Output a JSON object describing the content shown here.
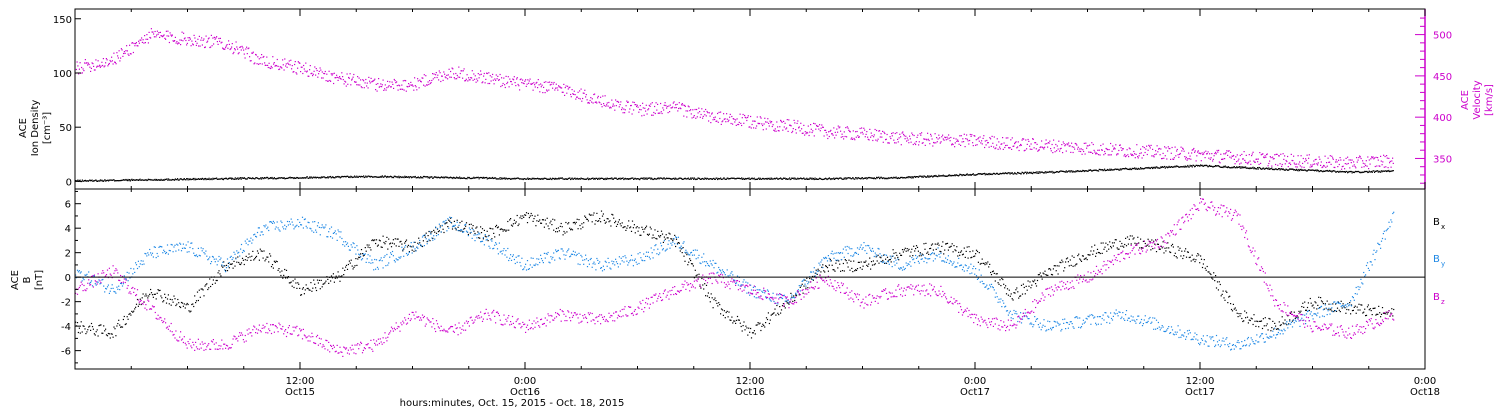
{
  "chart_data": [
    {
      "type": "scatter",
      "panel": "top",
      "x_unit": "hours since Oct 15, 2015 00:00",
      "xlim": [
        0,
        72
      ],
      "left_axis": {
        "label_lines": [
          "ACE",
          "Ion Density",
          "[cm⁻³]"
        ],
        "ticks": [
          0,
          50,
          100,
          150
        ],
        "tick_labels": [
          "0",
          "50",
          "100",
          "150"
        ],
        "ylim": [
          -7,
          159
        ]
      },
      "right_axis": {
        "label_lines": [
          "ACE",
          "Velocity",
          "[km/s]"
        ],
        "ticks": [
          350,
          400,
          450,
          500
        ],
        "tick_labels": [
          "350",
          "400",
          "450",
          "500"
        ],
        "ylim": [
          313,
          531
        ],
        "color": "#cc00cc"
      },
      "series": [
        {
          "name": "",
          "axis": "left",
          "color": "#000000",
          "x": [
            0,
            4,
            8,
            12,
            16,
            20,
            24,
            28,
            32,
            36,
            40,
            44,
            48,
            52,
            56,
            60,
            64,
            68,
            70.3
          ],
          "y": [
            1,
            2,
            3,
            4,
            5,
            4,
            3,
            3,
            3,
            3,
            3,
            4,
            7,
            9,
            12,
            15,
            12,
            9,
            10
          ]
        },
        {
          "name": "",
          "axis": "right",
          "color": "#cc00cc",
          "x": [
            0,
            2,
            4,
            6,
            8,
            10,
            12,
            14,
            16,
            18,
            20,
            22,
            24,
            26,
            28,
            30,
            32,
            34,
            36,
            38,
            40,
            42,
            44,
            46,
            48,
            50,
            52,
            54,
            56,
            58,
            60,
            62,
            64,
            66,
            68,
            70.3
          ],
          "y": [
            460,
            470,
            500,
            495,
            490,
            468,
            460,
            448,
            440,
            440,
            455,
            448,
            440,
            435,
            420,
            410,
            412,
            400,
            395,
            390,
            383,
            380,
            375,
            373,
            372,
            368,
            366,
            363,
            360,
            358,
            355,
            352,
            349,
            347,
            345,
            348
          ]
        }
      ]
    },
    {
      "type": "scatter",
      "panel": "bottom",
      "x_unit": "hours since Oct 15, 2015 00:00",
      "xlim": [
        0,
        72
      ],
      "title": "",
      "xlabel": "hours:minutes, Oct. 15, 2015 - Oct. 18, 2015",
      "x_ticks": [
        12,
        24,
        36,
        48,
        60,
        72
      ],
      "x_tick_labels": [
        [
          "12:00",
          "Oct15"
        ],
        [
          "0:00",
          "Oct16"
        ],
        [
          "12:00",
          "Oct16"
        ],
        [
          "0:00",
          "Oct17"
        ],
        [
          "12:00",
          "Oct17"
        ],
        [
          "0:00",
          "Oct18"
        ]
      ],
      "left_axis": {
        "label_lines": [
          "ACE",
          "B",
          "[nT]"
        ],
        "ticks": [
          -6,
          -4,
          -2,
          0,
          2,
          4,
          6
        ],
        "tick_labels": [
          "-6",
          "-4",
          "-2",
          "0",
          "2",
          "4",
          "6"
        ],
        "ylim": [
          -7.5,
          7.2
        ]
      },
      "zero_line": true,
      "legend_position": "right",
      "series": [
        {
          "name": "Bx",
          "label_main": "B",
          "label_sub": "x",
          "color": "#000000",
          "x": [
            0,
            2,
            4,
            6,
            8,
            10,
            12,
            14,
            16,
            18,
            20,
            22,
            24,
            26,
            28,
            30,
            32,
            34,
            36,
            38,
            40,
            42,
            44,
            46,
            48,
            50,
            52,
            54,
            56,
            58,
            60,
            62,
            64,
            66,
            68,
            70.3
          ],
          "y": [
            -4,
            -4.5,
            -1,
            -2.5,
            1,
            2,
            -1,
            0,
            3,
            2.5,
            4.5,
            3.5,
            5,
            4,
            5,
            4,
            3,
            -2,
            -4.5,
            -2,
            1,
            1,
            2,
            2.5,
            2,
            -1.5,
            0.5,
            2,
            3,
            2.5,
            1.5,
            -3,
            -4,
            -2,
            -2.5,
            -3
          ]
        },
        {
          "name": "By",
          "label_main": "B",
          "label_sub": "y",
          "color": "#1e88e5",
          "x": [
            0,
            2,
            4,
            6,
            8,
            10,
            12,
            14,
            16,
            18,
            20,
            22,
            24,
            26,
            28,
            30,
            32,
            34,
            36,
            38,
            40,
            42,
            44,
            46,
            48,
            50,
            52,
            54,
            56,
            58,
            60,
            62,
            64,
            66,
            68,
            70.3
          ],
          "y": [
            0.5,
            -1,
            2,
            2.5,
            1,
            4,
            4.5,
            3.5,
            1,
            2.5,
            4.5,
            3,
            1,
            2,
            1,
            1.5,
            3,
            1,
            -1,
            -2,
            1.5,
            2.5,
            1,
            2,
            0.5,
            -3,
            -4,
            -3.5,
            -3,
            -4,
            -5,
            -5.5,
            -4.5,
            -3,
            -2,
            5
          ]
        },
        {
          "name": "Bz",
          "label_main": "B",
          "label_sub": "z",
          "color": "#cc00cc",
          "x": [
            0,
            2,
            4,
            6,
            8,
            10,
            12,
            14,
            16,
            18,
            20,
            22,
            24,
            26,
            28,
            30,
            32,
            34,
            36,
            38,
            40,
            42,
            44,
            46,
            48,
            50,
            52,
            54,
            56,
            58,
            60,
            62,
            64,
            66,
            68,
            70.3
          ],
          "y": [
            -1,
            0.5,
            -2.5,
            -5.5,
            -5.5,
            -4,
            -4.5,
            -6,
            -5.5,
            -3,
            -4.5,
            -3,
            -4,
            -3,
            -3.5,
            -2.5,
            -1,
            0,
            -1,
            -2,
            0,
            -2,
            -1,
            -1,
            -3.5,
            -4,
            -1,
            0,
            2,
            3,
            6,
            5,
            -2,
            -4,
            -4.5,
            -3
          ]
        }
      ]
    }
  ]
}
